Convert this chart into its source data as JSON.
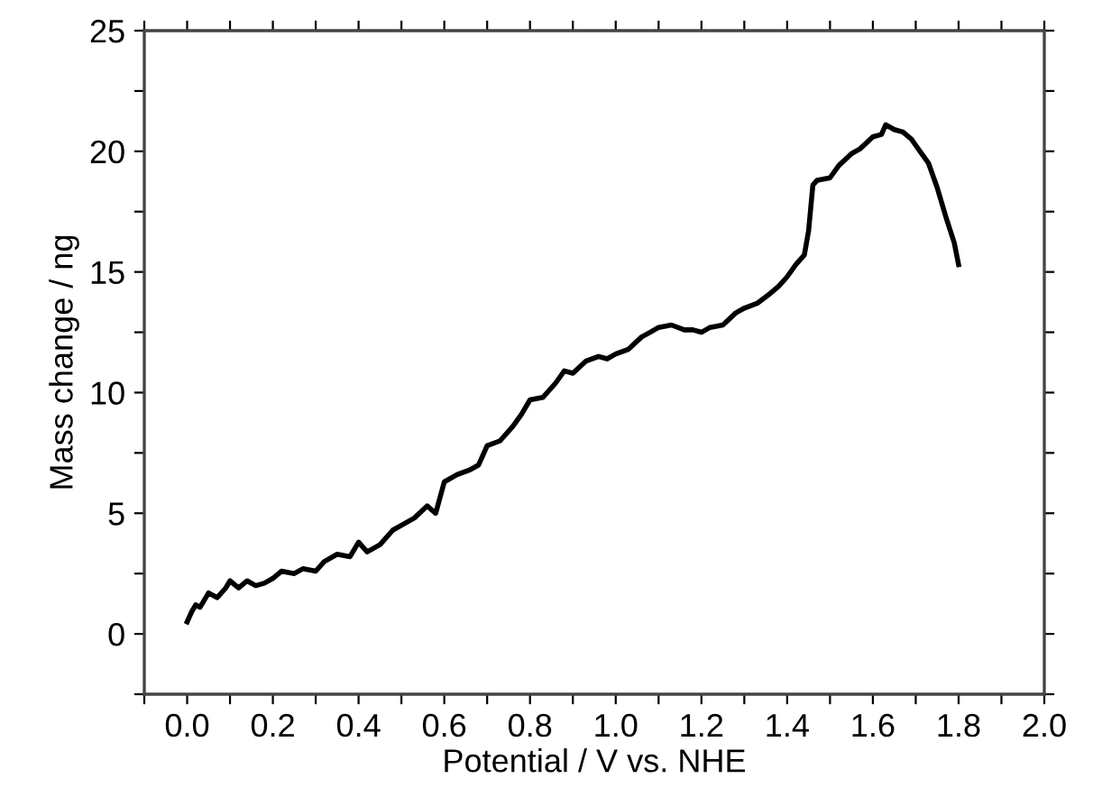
{
  "chart_data": {
    "type": "line",
    "xlabel": "Potential / V vs. NHE",
    "ylabel": "Mass change / ng",
    "x": [
      0.0,
      0.01,
      0.02,
      0.03,
      0.05,
      0.07,
      0.09,
      0.1,
      0.12,
      0.14,
      0.16,
      0.18,
      0.2,
      0.22,
      0.25,
      0.27,
      0.3,
      0.32,
      0.35,
      0.38,
      0.4,
      0.42,
      0.45,
      0.48,
      0.5,
      0.53,
      0.56,
      0.58,
      0.6,
      0.63,
      0.66,
      0.68,
      0.7,
      0.73,
      0.76,
      0.78,
      0.8,
      0.83,
      0.86,
      0.88,
      0.9,
      0.93,
      0.96,
      0.98,
      1.0,
      1.03,
      1.06,
      1.08,
      1.1,
      1.13,
      1.16,
      1.18,
      1.2,
      1.22,
      1.25,
      1.28,
      1.3,
      1.33,
      1.36,
      1.38,
      1.4,
      1.42,
      1.44,
      1.45,
      1.46,
      1.47,
      1.5,
      1.52,
      1.55,
      1.57,
      1.6,
      1.62,
      1.63,
      1.65,
      1.67,
      1.69,
      1.71,
      1.73,
      1.75,
      1.77,
      1.79,
      1.8
    ],
    "series": [
      {
        "color": "#000000",
        "values": [
          0.5,
          0.9,
          1.2,
          1.1,
          1.7,
          1.5,
          1.9,
          2.2,
          1.9,
          2.2,
          2.0,
          2.1,
          2.3,
          2.6,
          2.5,
          2.7,
          2.6,
          3.0,
          3.3,
          3.2,
          3.8,
          3.4,
          3.7,
          4.3,
          4.5,
          4.8,
          5.3,
          5.0,
          6.3,
          6.6,
          6.8,
          7.0,
          7.8,
          8.0,
          8.6,
          9.1,
          9.7,
          9.8,
          10.4,
          10.9,
          10.8,
          11.3,
          11.5,
          11.4,
          11.6,
          11.8,
          12.3,
          12.5,
          12.7,
          12.8,
          12.6,
          12.6,
          12.5,
          12.7,
          12.8,
          13.3,
          13.5,
          13.7,
          14.1,
          14.4,
          14.8,
          15.3,
          15.7,
          16.7,
          18.6,
          18.8,
          18.9,
          19.4,
          19.9,
          20.1,
          20.6,
          20.7,
          21.1,
          20.9,
          20.8,
          20.5,
          20.0,
          19.5,
          18.5,
          17.3,
          16.2,
          15.3
        ]
      }
    ],
    "xlim": [
      -0.1,
      2.0
    ],
    "ylim": [
      -2.5,
      25
    ],
    "xticks": [
      {
        "value": -0.1,
        "label": null
      },
      {
        "value": 0.0,
        "label": "0.0"
      },
      {
        "value": 0.1,
        "label": null
      },
      {
        "value": 0.2,
        "label": "0.2"
      },
      {
        "value": 0.3,
        "label": null
      },
      {
        "value": 0.4,
        "label": "0.4"
      },
      {
        "value": 0.5,
        "label": null
      },
      {
        "value": 0.6,
        "label": "0.6"
      },
      {
        "value": 0.7,
        "label": null
      },
      {
        "value": 0.8,
        "label": "0.8"
      },
      {
        "value": 0.9,
        "label": null
      },
      {
        "value": 1.0,
        "label": "1.0"
      },
      {
        "value": 1.1,
        "label": null
      },
      {
        "value": 1.2,
        "label": "1.2"
      },
      {
        "value": 1.3,
        "label": null
      },
      {
        "value": 1.4,
        "label": "1.4"
      },
      {
        "value": 1.5,
        "label": null
      },
      {
        "value": 1.6,
        "label": "1.6"
      },
      {
        "value": 1.7,
        "label": null
      },
      {
        "value": 1.8,
        "label": "1.8"
      },
      {
        "value": 1.9,
        "label": null
      },
      {
        "value": 2.0,
        "label": "2.0"
      }
    ],
    "yticks": [
      {
        "value": -2.5,
        "label": null
      },
      0,
      {
        "value": 2.5,
        "label": null
      },
      5,
      {
        "value": 7.5,
        "label": null
      },
      10,
      {
        "value": 12.5,
        "label": null
      },
      15,
      {
        "value": 17.5,
        "label": null
      },
      20,
      {
        "value": 22.5,
        "label": null
      },
      25
    ],
    "grid": false,
    "legend": false,
    "marker": "none",
    "line_style": "solid"
  }
}
